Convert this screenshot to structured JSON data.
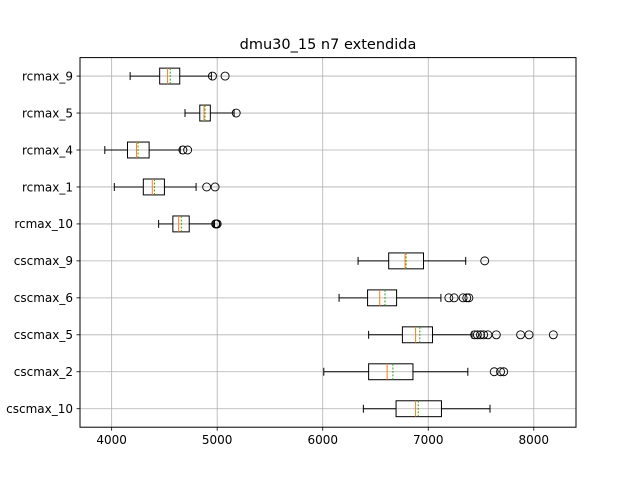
{
  "chart_data": {
    "type": "boxplot",
    "orientation": "horizontal",
    "title": "dmu30_15 n7 extendida",
    "xlabel": "",
    "ylabel": "",
    "xlim": [
      3700,
      8400
    ],
    "xticks": [
      4000,
      5000,
      6000,
      7000,
      8000
    ],
    "grid": true,
    "median_color": "#ff7f0e",
    "mean_color": "#2ca02c",
    "box_color": "#000000",
    "grid_color": "#b0b0b0",
    "categories": [
      "rcmax_9",
      "rcmax_5",
      "rcmax_4",
      "rcmax_1",
      "rcmax_10",
      "cscmax_9",
      "cscmax_6",
      "cscmax_5",
      "cscmax_2",
      "cscmax_10"
    ],
    "series": [
      {
        "label": "rcmax_9",
        "whislo": 4175,
        "q1": 4455,
        "median": 4530,
        "mean": 4555,
        "q3": 4645,
        "whishi": 4945,
        "fliers": [
          4955,
          5075
        ]
      },
      {
        "label": "rcmax_5",
        "whislo": 4695,
        "q1": 4835,
        "median": 4875,
        "mean": 4885,
        "q3": 4935,
        "whishi": 5160,
        "fliers": [
          5180
        ]
      },
      {
        "label": "rcmax_4",
        "whislo": 3935,
        "q1": 4150,
        "median": 4235,
        "mean": 4250,
        "q3": 4355,
        "whishi": 4650,
        "fliers": [
          4675,
          4720
        ]
      },
      {
        "label": "rcmax_1",
        "whislo": 4025,
        "q1": 4300,
        "median": 4385,
        "mean": 4405,
        "q3": 4500,
        "whishi": 4800,
        "fliers": [
          4900,
          4980
        ]
      },
      {
        "label": "rcmax_10",
        "whislo": 4445,
        "q1": 4580,
        "median": 4635,
        "mean": 4660,
        "q3": 4735,
        "whishi": 4975,
        "fliers": [
          4985,
          4990,
          5000
        ]
      },
      {
        "label": "cscmax_9",
        "whislo": 6335,
        "q1": 6625,
        "median": 6780,
        "mean": 6790,
        "q3": 6955,
        "whishi": 7355,
        "fliers": [
          7535
        ]
      },
      {
        "label": "cscmax_6",
        "whislo": 6155,
        "q1": 6425,
        "median": 6540,
        "mean": 6590,
        "q3": 6700,
        "whishi": 7120,
        "fliers": [
          7195,
          7245,
          7330,
          7365,
          7385
        ]
      },
      {
        "label": "cscmax_5",
        "whislo": 6435,
        "q1": 6755,
        "median": 6880,
        "mean": 6920,
        "q3": 7040,
        "whishi": 7415,
        "fliers": [
          7440,
          7465,
          7495,
          7525,
          7565,
          7645,
          7875,
          7955,
          8185
        ]
      },
      {
        "label": "cscmax_2",
        "whislo": 6010,
        "q1": 6435,
        "median": 6610,
        "mean": 6665,
        "q3": 6855,
        "whishi": 7375,
        "fliers": [
          7625,
          7685,
          7715
        ]
      },
      {
        "label": "cscmax_10",
        "whislo": 6385,
        "q1": 6695,
        "median": 6880,
        "mean": 6905,
        "q3": 7125,
        "whishi": 7585,
        "fliers": []
      }
    ]
  }
}
